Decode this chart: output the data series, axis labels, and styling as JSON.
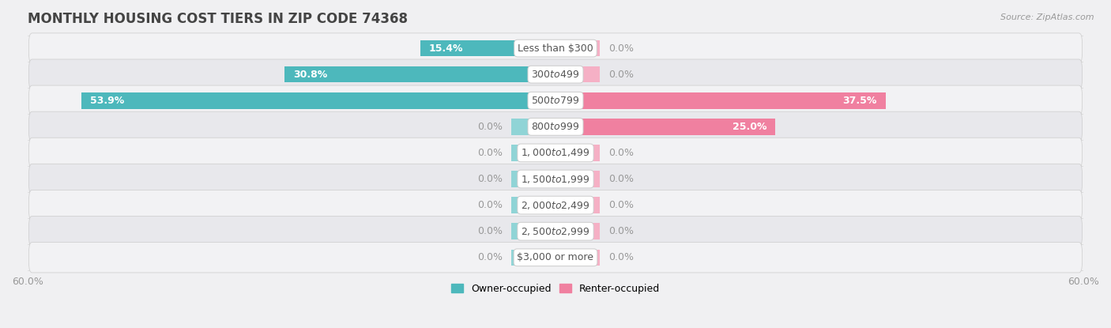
{
  "title": "MONTHLY HOUSING COST TIERS IN ZIP CODE 74368",
  "source": "Source: ZipAtlas.com",
  "categories": [
    "Less than $300",
    "$300 to $499",
    "$500 to $799",
    "$800 to $999",
    "$1,000 to $1,499",
    "$1,500 to $1,999",
    "$2,000 to $2,499",
    "$2,500 to $2,999",
    "$3,000 or more"
  ],
  "owner_values": [
    15.4,
    30.8,
    53.9,
    0.0,
    0.0,
    0.0,
    0.0,
    0.0,
    0.0
  ],
  "renter_values": [
    0.0,
    0.0,
    37.5,
    25.0,
    0.0,
    0.0,
    0.0,
    0.0,
    0.0
  ],
  "owner_color": "#4db8bc",
  "renter_color": "#f080a0",
  "owner_stub_color": "#90d4d6",
  "renter_stub_color": "#f5b0c5",
  "axis_limit": 60.0,
  "bar_height": 0.62,
  "stub_size": 5.0,
  "row_bg_light": "#f2f2f4",
  "row_bg_dark": "#e8e8ec",
  "category_label_fontsize": 9,
  "value_label_fontsize": 9,
  "title_fontsize": 12,
  "legend_fontsize": 9,
  "axis_label_fontsize": 9,
  "inside_label_threshold": 8.0
}
